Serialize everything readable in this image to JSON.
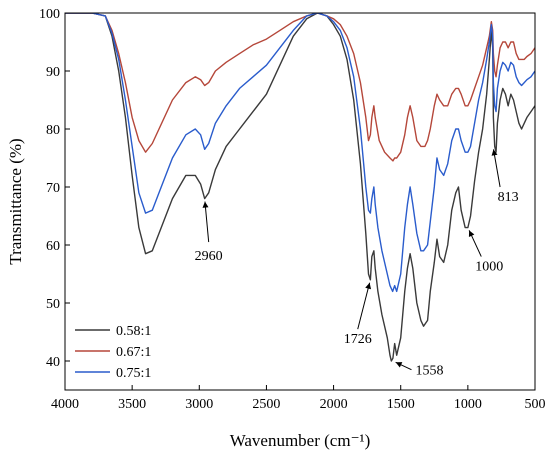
{
  "chart_data": {
    "type": "line",
    "xlabel": "Wavenumber (cm⁻¹)",
    "ylabel": "Transmittance (%)",
    "xlim": [
      4000,
      500
    ],
    "ylim": [
      35,
      100
    ],
    "x_reversed": true,
    "grid": false,
    "legend_position": "bottom-left",
    "x_ticks": [
      4000,
      3500,
      3000,
      2500,
      2000,
      1500,
      1000,
      500
    ],
    "y_ticks": [
      40,
      50,
      60,
      70,
      80,
      90,
      100
    ],
    "series": [
      {
        "name": "0.58:1",
        "color": "#3a3a3a",
        "points": [
          [
            4000,
            100
          ],
          [
            3800,
            100
          ],
          [
            3700,
            99.5
          ],
          [
            3650,
            96
          ],
          [
            3600,
            90
          ],
          [
            3550,
            82
          ],
          [
            3500,
            72
          ],
          [
            3450,
            63
          ],
          [
            3400,
            58.5
          ],
          [
            3350,
            59
          ],
          [
            3300,
            62
          ],
          [
            3200,
            68
          ],
          [
            3100,
            72
          ],
          [
            3030,
            72
          ],
          [
            2990,
            70.5
          ],
          [
            2960,
            68
          ],
          [
            2930,
            69
          ],
          [
            2880,
            73
          ],
          [
            2800,
            77
          ],
          [
            2700,
            80
          ],
          [
            2600,
            83
          ],
          [
            2500,
            86
          ],
          [
            2400,
            91
          ],
          [
            2300,
            96
          ],
          [
            2200,
            99
          ],
          [
            2120,
            100
          ],
          [
            2050,
            99.5
          ],
          [
            2000,
            98
          ],
          [
            1950,
            96
          ],
          [
            1900,
            92
          ],
          [
            1850,
            85
          ],
          [
            1800,
            74
          ],
          [
            1760,
            62
          ],
          [
            1740,
            55
          ],
          [
            1726,
            54
          ],
          [
            1715,
            58
          ],
          [
            1700,
            59
          ],
          [
            1690,
            56
          ],
          [
            1670,
            52
          ],
          [
            1640,
            48
          ],
          [
            1600,
            44
          ],
          [
            1580,
            41
          ],
          [
            1570,
            40
          ],
          [
            1558,
            40.5
          ],
          [
            1545,
            43
          ],
          [
            1530,
            41
          ],
          [
            1500,
            44
          ],
          [
            1470,
            52
          ],
          [
            1450,
            56
          ],
          [
            1430,
            58.5
          ],
          [
            1410,
            56
          ],
          [
            1380,
            50
          ],
          [
            1350,
            47
          ],
          [
            1330,
            46
          ],
          [
            1300,
            47
          ],
          [
            1280,
            52
          ],
          [
            1250,
            57
          ],
          [
            1230,
            61
          ],
          [
            1210,
            58
          ],
          [
            1180,
            57
          ],
          [
            1150,
            60
          ],
          [
            1120,
            66
          ],
          [
            1090,
            69
          ],
          [
            1070,
            70
          ],
          [
            1050,
            66
          ],
          [
            1020,
            63
          ],
          [
            1000,
            63
          ],
          [
            980,
            65
          ],
          [
            950,
            71
          ],
          [
            920,
            76
          ],
          [
            890,
            80
          ],
          [
            860,
            86
          ],
          [
            840,
            92
          ],
          [
            825,
            97
          ],
          [
            815,
            94
          ],
          [
            810,
            82
          ],
          [
            800,
            77
          ],
          [
            790,
            76
          ],
          [
            780,
            81
          ],
          [
            760,
            85
          ],
          [
            740,
            87
          ],
          [
            720,
            86
          ],
          [
            700,
            84
          ],
          [
            680,
            86
          ],
          [
            660,
            85
          ],
          [
            640,
            83
          ],
          [
            620,
            81
          ],
          [
            600,
            80
          ],
          [
            580,
            81
          ],
          [
            560,
            82
          ],
          [
            530,
            83
          ],
          [
            500,
            84
          ]
        ]
      },
      {
        "name": "0.67:1",
        "color": "#b5473a",
        "points": [
          [
            4000,
            100
          ],
          [
            3800,
            100
          ],
          [
            3700,
            99.5
          ],
          [
            3650,
            97
          ],
          [
            3600,
            93
          ],
          [
            3550,
            88
          ],
          [
            3500,
            82
          ],
          [
            3450,
            78
          ],
          [
            3400,
            76
          ],
          [
            3350,
            77.5
          ],
          [
            3300,
            80
          ],
          [
            3200,
            85
          ],
          [
            3100,
            88
          ],
          [
            3030,
            89
          ],
          [
            2990,
            88.5
          ],
          [
            2960,
            87.5
          ],
          [
            2930,
            88
          ],
          [
            2880,
            90
          ],
          [
            2800,
            91.5
          ],
          [
            2700,
            93
          ],
          [
            2600,
            94.5
          ],
          [
            2500,
            95.5
          ],
          [
            2400,
            97
          ],
          [
            2300,
            98.5
          ],
          [
            2200,
            99.5
          ],
          [
            2120,
            100
          ],
          [
            2050,
            99.5
          ],
          [
            2000,
            99
          ],
          [
            1950,
            98
          ],
          [
            1900,
            96
          ],
          [
            1850,
            93
          ],
          [
            1800,
            88
          ],
          [
            1760,
            82
          ],
          [
            1740,
            78
          ],
          [
            1726,
            79
          ],
          [
            1715,
            82
          ],
          [
            1700,
            84
          ],
          [
            1690,
            82
          ],
          [
            1660,
            78
          ],
          [
            1620,
            76
          ],
          [
            1580,
            75
          ],
          [
            1558,
            74.5
          ],
          [
            1545,
            75
          ],
          [
            1530,
            75
          ],
          [
            1500,
            76
          ],
          [
            1470,
            79
          ],
          [
            1450,
            82
          ],
          [
            1430,
            84
          ],
          [
            1410,
            82
          ],
          [
            1380,
            78
          ],
          [
            1350,
            77
          ],
          [
            1320,
            77
          ],
          [
            1300,
            78
          ],
          [
            1280,
            80
          ],
          [
            1250,
            84
          ],
          [
            1230,
            86
          ],
          [
            1210,
            85
          ],
          [
            1180,
            84
          ],
          [
            1150,
            84
          ],
          [
            1120,
            86
          ],
          [
            1090,
            87
          ],
          [
            1070,
            87
          ],
          [
            1050,
            86
          ],
          [
            1020,
            84
          ],
          [
            1000,
            84
          ],
          [
            980,
            85
          ],
          [
            950,
            87
          ],
          [
            920,
            89
          ],
          [
            890,
            91
          ],
          [
            860,
            94
          ],
          [
            840,
            96
          ],
          [
            825,
            98.5
          ],
          [
            815,
            97
          ],
          [
            810,
            93
          ],
          [
            800,
            90
          ],
          [
            790,
            89
          ],
          [
            780,
            91
          ],
          [
            760,
            94
          ],
          [
            740,
            95
          ],
          [
            720,
            95
          ],
          [
            700,
            94
          ],
          [
            680,
            95
          ],
          [
            660,
            95
          ],
          [
            640,
            93
          ],
          [
            620,
            92
          ],
          [
            600,
            92
          ],
          [
            580,
            92
          ],
          [
            560,
            92.5
          ],
          [
            530,
            93
          ],
          [
            500,
            94
          ]
        ]
      },
      {
        "name": "0.75:1",
        "color": "#2a5ccc",
        "points": [
          [
            4000,
            100
          ],
          [
            3800,
            100
          ],
          [
            3700,
            99.5
          ],
          [
            3650,
            96.5
          ],
          [
            3600,
            92
          ],
          [
            3550,
            85
          ],
          [
            3500,
            77
          ],
          [
            3450,
            69
          ],
          [
            3400,
            65.5
          ],
          [
            3350,
            66
          ],
          [
            3300,
            69
          ],
          [
            3200,
            75
          ],
          [
            3100,
            79
          ],
          [
            3030,
            80
          ],
          [
            2990,
            79
          ],
          [
            2960,
            76.5
          ],
          [
            2930,
            77.5
          ],
          [
            2880,
            81
          ],
          [
            2800,
            84
          ],
          [
            2700,
            87
          ],
          [
            2600,
            89
          ],
          [
            2500,
            91
          ],
          [
            2400,
            94
          ],
          [
            2300,
            97
          ],
          [
            2200,
            99.5
          ],
          [
            2120,
            100
          ],
          [
            2050,
            99.5
          ],
          [
            2000,
            98.5
          ],
          [
            1950,
            97
          ],
          [
            1900,
            94
          ],
          [
            1850,
            89
          ],
          [
            1800,
            80
          ],
          [
            1760,
            70
          ],
          [
            1740,
            66
          ],
          [
            1726,
            65.5
          ],
          [
            1715,
            68
          ],
          [
            1700,
            70
          ],
          [
            1690,
            67
          ],
          [
            1670,
            63
          ],
          [
            1640,
            59
          ],
          [
            1600,
            55
          ],
          [
            1580,
            53
          ],
          [
            1560,
            52
          ],
          [
            1545,
            53
          ],
          [
            1530,
            52
          ],
          [
            1500,
            55
          ],
          [
            1470,
            63
          ],
          [
            1450,
            67
          ],
          [
            1430,
            70
          ],
          [
            1410,
            67
          ],
          [
            1380,
            62
          ],
          [
            1350,
            59
          ],
          [
            1330,
            59
          ],
          [
            1300,
            60
          ],
          [
            1280,
            64
          ],
          [
            1250,
            70
          ],
          [
            1230,
            75
          ],
          [
            1210,
            73
          ],
          [
            1180,
            72
          ],
          [
            1150,
            74
          ],
          [
            1120,
            78
          ],
          [
            1090,
            80
          ],
          [
            1070,
            80
          ],
          [
            1050,
            78
          ],
          [
            1020,
            76
          ],
          [
            1000,
            76
          ],
          [
            980,
            77
          ],
          [
            950,
            81
          ],
          [
            920,
            85
          ],
          [
            890,
            88
          ],
          [
            860,
            92
          ],
          [
            840,
            95
          ],
          [
            825,
            98
          ],
          [
            815,
            96
          ],
          [
            810,
            88
          ],
          [
            800,
            84
          ],
          [
            790,
            83
          ],
          [
            780,
            87
          ],
          [
            760,
            90
          ],
          [
            740,
            91.5
          ],
          [
            720,
            91
          ],
          [
            700,
            90
          ],
          [
            680,
            91.5
          ],
          [
            660,
            91
          ],
          [
            640,
            89
          ],
          [
            620,
            88
          ],
          [
            600,
            87.5
          ],
          [
            580,
            88
          ],
          [
            560,
            88.5
          ],
          [
            530,
            89
          ],
          [
            500,
            90
          ]
        ]
      }
    ],
    "annotations": [
      {
        "text": "2960",
        "x": 2960,
        "y": 68
      },
      {
        "text": "1726",
        "x": 1726,
        "y": 54
      },
      {
        "text": "1558",
        "x": 1558,
        "y": 40
      },
      {
        "text": "1000",
        "x": 1000,
        "y": 63
      },
      {
        "text": "813",
        "x": 813,
        "y": 77
      }
    ]
  }
}
